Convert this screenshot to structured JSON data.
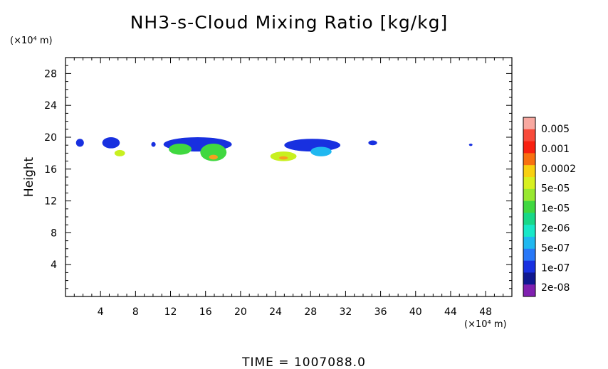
{
  "chart_data": {
    "type": "heatmap",
    "title": "NH3-s-Cloud Mixing Ratio [kg/kg]",
    "ylabel": "Height",
    "x_unit": "(×10⁴ m)",
    "y_unit": "(×10⁴ m)",
    "xlim": [
      0,
      51
    ],
    "ylim": [
      0,
      30
    ],
    "x_ticks": [
      "4",
      "8",
      "12",
      "16",
      "20",
      "24",
      "28",
      "32",
      "36",
      "40",
      "44",
      "48"
    ],
    "y_ticks": [
      "4",
      "8",
      "12",
      "16",
      "20",
      "24",
      "28"
    ],
    "legend_labels": [
      "0.005",
      "0.001",
      "0.0002",
      "5e-05",
      "1e-05",
      "2e-06",
      "5e-07",
      "1e-07",
      "2e-08"
    ],
    "legend_colors": [
      "#f8a8a0",
      "#f84a3a",
      "#f82010",
      "#f87010",
      "#f8d010",
      "#d8f020",
      "#98e830",
      "#40d840",
      "#18d888",
      "#18e8c8",
      "#20b8f0",
      "#2878f8",
      "#1830e0",
      "#101890",
      "#8020b0"
    ],
    "cloud_regions": [
      {
        "x": [
          1.2,
          2.1
        ],
        "y": [
          18.8,
          19.8
        ],
        "level": "1e-07"
      },
      {
        "x": [
          4.2,
          6.2
        ],
        "y": [
          18.6,
          20.0
        ],
        "level": "1e-07"
      },
      {
        "x": [
          5.6,
          6.8
        ],
        "y": [
          17.6,
          18.4
        ],
        "level": "5e-05"
      },
      {
        "x": [
          9.8,
          10.3
        ],
        "y": [
          18.8,
          19.4
        ],
        "level": "1e-07"
      },
      {
        "x": [
          11.2,
          19.0
        ],
        "y": [
          18.2,
          20.0
        ],
        "level": "1e-07"
      },
      {
        "x": [
          11.8,
          14.4
        ],
        "y": [
          17.8,
          19.2
        ],
        "level": "1e-05"
      },
      {
        "x": [
          15.4,
          18.4
        ],
        "y": [
          17.0,
          19.2
        ],
        "level": "1e-05"
      },
      {
        "x": [
          16.4,
          17.4
        ],
        "y": [
          17.2,
          17.8
        ],
        "level": "0.0002"
      },
      {
        "x": [
          23.4,
          26.4
        ],
        "y": [
          17.0,
          18.2
        ],
        "level": "5e-05"
      },
      {
        "x": [
          24.4,
          25.4
        ],
        "y": [
          17.2,
          17.6
        ],
        "level": "0.0002"
      },
      {
        "x": [
          25.0,
          31.4
        ],
        "y": [
          18.2,
          19.8
        ],
        "level": "1e-07"
      },
      {
        "x": [
          28.0,
          30.4
        ],
        "y": [
          17.6,
          18.8
        ],
        "level": "5e-07"
      },
      {
        "x": [
          34.6,
          35.6
        ],
        "y": [
          19.0,
          19.6
        ],
        "level": "1e-07"
      },
      {
        "x": [
          46.1,
          46.5
        ],
        "y": [
          18.9,
          19.2
        ],
        "level": "1e-07"
      }
    ]
  },
  "footer": {
    "time_label": "TIME = 1007088.0"
  }
}
